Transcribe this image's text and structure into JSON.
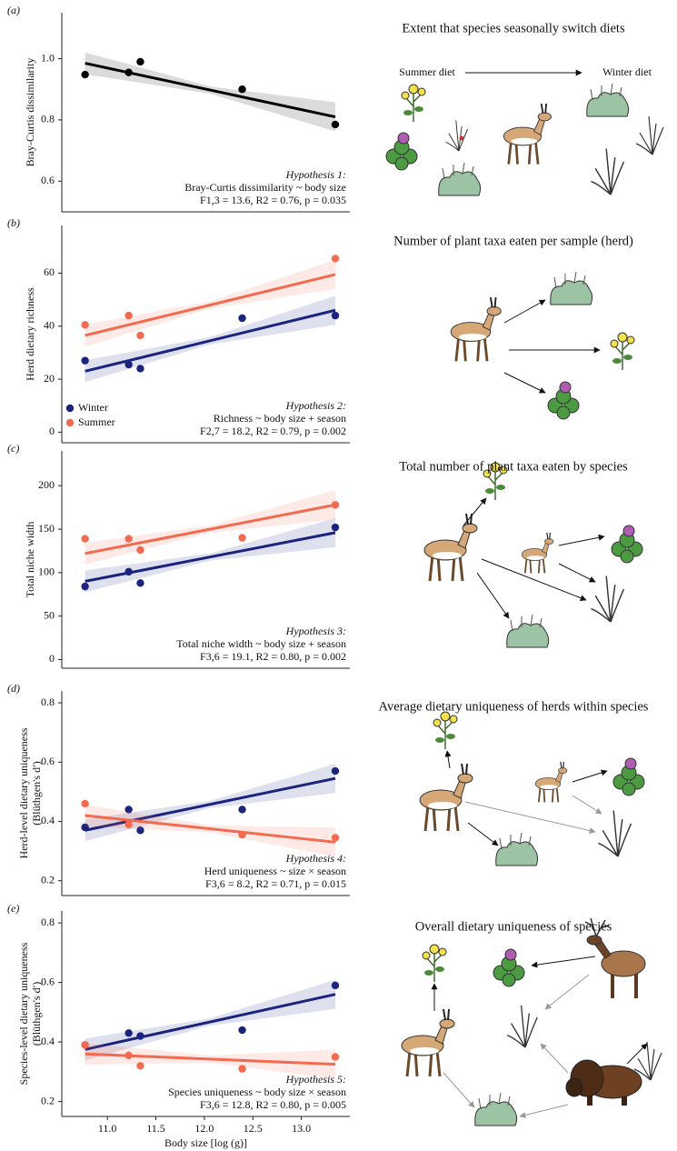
{
  "chart_data": [
    {
      "type": "scatter",
      "panel": "(a)",
      "title": "Extent that species seasonally switch diets",
      "diet_labels": [
        "Summer diet",
        "Winter diet"
      ],
      "ylabel": [
        "Bray-Curtis dissimilarity"
      ],
      "hypothesis": [
        "Hypothesis 1:",
        "Bray-Curtis dissimilarity ~ body size",
        "F1,3 = 13.6, R2 = 0.76, p = 0.035"
      ],
      "xlim": [
        10.53,
        13.5
      ],
      "ylim": [
        0.5,
        1.15
      ],
      "yticks": [
        0.6,
        0.8,
        {
          "value": 1.0,
          "label": "1.0"
        }
      ],
      "series": [
        {
          "color": "#000000",
          "x": [
            10.77,
            11.22,
            11.34,
            12.39,
            13.35
          ],
          "values": [
            0.948,
            0.955,
            0.99,
            0.9,
            0.785
          ],
          "fit_x": [
            10.77,
            13.35
          ],
          "fit": [
            0.985,
            0.81
          ]
        }
      ]
    },
    {
      "type": "scatter",
      "panel": "(b)",
      "title": "Number of plant taxa eaten per sample (herd)",
      "ylabel": [
        "Herd dietary richness"
      ],
      "hypothesis": [
        "Hypothesis 2:",
        "Richness ~ body size + season",
        "F2,7 = 18.2, R2 = 0.79, p = 0.002"
      ],
      "legend": "lower left",
      "xlim": [
        10.53,
        13.5
      ],
      "ylim": [
        -4,
        78
      ],
      "yticks": [
        0,
        20,
        40,
        60
      ],
      "series": [
        {
          "name": "Winter",
          "color": "#1a237e",
          "x": [
            10.77,
            11.22,
            11.34,
            12.39,
            13.35
          ],
          "values": [
            27,
            25.5,
            24,
            43,
            44
          ],
          "fit_x": [
            10.77,
            13.35
          ],
          "fit": [
            23,
            46
          ]
        },
        {
          "name": "Summer",
          "color": "#f26b50",
          "x": [
            10.77,
            11.22,
            11.34,
            13.35
          ],
          "values": [
            40.5,
            44,
            36.5,
            65.5
          ],
          "fit_x": [
            10.77,
            13.35
          ],
          "fit": [
            36.5,
            59.5
          ]
        }
      ]
    },
    {
      "type": "scatter",
      "panel": "(c)",
      "title": "Total number of plant taxa eaten by species",
      "ylabel": [
        "Total niche width"
      ],
      "hypothesis": [
        "Hypothesis 3:",
        "Total niche width ~ body size + season",
        "F3,6 = 19.1, R2 = 0.80, p = 0.002"
      ],
      "xlim": [
        10.53,
        13.5
      ],
      "ylim": [
        -10,
        240
      ],
      "yticks": [
        0,
        50,
        100,
        150,
        200
      ],
      "series": [
        {
          "name": "Winter",
          "color": "#1a237e",
          "x": [
            10.77,
            11.22,
            11.34,
            13.35
          ],
          "values": [
            84,
            101,
            88,
            152
          ],
          "fit_x": [
            10.77,
            13.35
          ],
          "fit": [
            90,
            146
          ]
        },
        {
          "name": "Summer",
          "color": "#f26b50",
          "x": [
            10.77,
            11.22,
            11.34,
            12.39,
            13.35
          ],
          "values": [
            139,
            139,
            126,
            140,
            178
          ],
          "fit_x": [
            10.77,
            13.35
          ],
          "fit": [
            122,
            178
          ]
        }
      ]
    },
    {
      "type": "scatter",
      "panel": "(d)",
      "title": "Average dietary uniqueness of herds within species",
      "ylabel": [
        "Herd-level dietary uniqueness",
        "(Blüthgen's d′)"
      ],
      "hypothesis": [
        "Hypothesis 4:",
        "Herd uniqueness ~ size × season",
        "F3,6 = 8.2, R2 = 0.71, p = 0.015"
      ],
      "xlim": [
        10.53,
        13.5
      ],
      "ylim": [
        0.15,
        0.84
      ],
      "yticks": [
        0.2,
        0.4,
        0.6,
        0.8
      ],
      "series": [
        {
          "name": "Winter",
          "color": "#1a237e",
          "x": [
            10.77,
            11.22,
            11.34,
            12.39,
            13.35
          ],
          "values": [
            0.38,
            0.44,
            0.37,
            0.44,
            0.57
          ],
          "fit_x": [
            10.77,
            13.35
          ],
          "fit": [
            0.37,
            0.545
          ]
        },
        {
          "name": "Summer",
          "color": "#f26b50",
          "x": [
            10.77,
            11.22,
            12.39,
            13.35
          ],
          "values": [
            0.46,
            0.39,
            0.355,
            0.345
          ],
          "fit_x": [
            10.77,
            13.35
          ],
          "fit": [
            0.42,
            0.33
          ]
        }
      ]
    },
    {
      "type": "scatter",
      "panel": "(e)",
      "title": "Overall dietary uniqueness of species",
      "ylabel": [
        "Species-level dietary uniqueness",
        "(Blüthgen's d′)"
      ],
      "hypothesis": [
        "Hypothesis 5:",
        "Species uniqueness ~ body size × season",
        "F3,6 = 12.8, R2 = 0.80, p = 0.005"
      ],
      "xlabel": "Body size [log (g)]",
      "xlim": [
        10.53,
        13.5
      ],
      "ylim": [
        0.15,
        0.84
      ],
      "yticks": [
        0.2,
        0.4,
        0.6,
        0.8
      ],
      "xticks": [
        {
          "value": 11,
          "label": "11.0"
        },
        11.5,
        {
          "value": 12,
          "label": "12.0"
        },
        12.5,
        {
          "value": 13,
          "label": "13.0"
        }
      ],
      "series": [
        {
          "name": "Winter",
          "color": "#1a237e",
          "x": [
            10.77,
            11.22,
            11.34,
            12.39,
            13.35
          ],
          "values": [
            0.39,
            0.43,
            0.42,
            0.44,
            0.59
          ],
          "fit_x": [
            10.77,
            13.35
          ],
          "fit": [
            0.375,
            0.56
          ]
        },
        {
          "name": "Summer",
          "color": "#f26b50",
          "x": [
            10.77,
            11.22,
            11.34,
            12.39,
            13.35
          ],
          "values": [
            0.39,
            0.355,
            0.32,
            0.31,
            0.35
          ],
          "fit_x": [
            10.77,
            13.35
          ],
          "fit": [
            0.36,
            0.325
          ]
        }
      ]
    }
  ]
}
